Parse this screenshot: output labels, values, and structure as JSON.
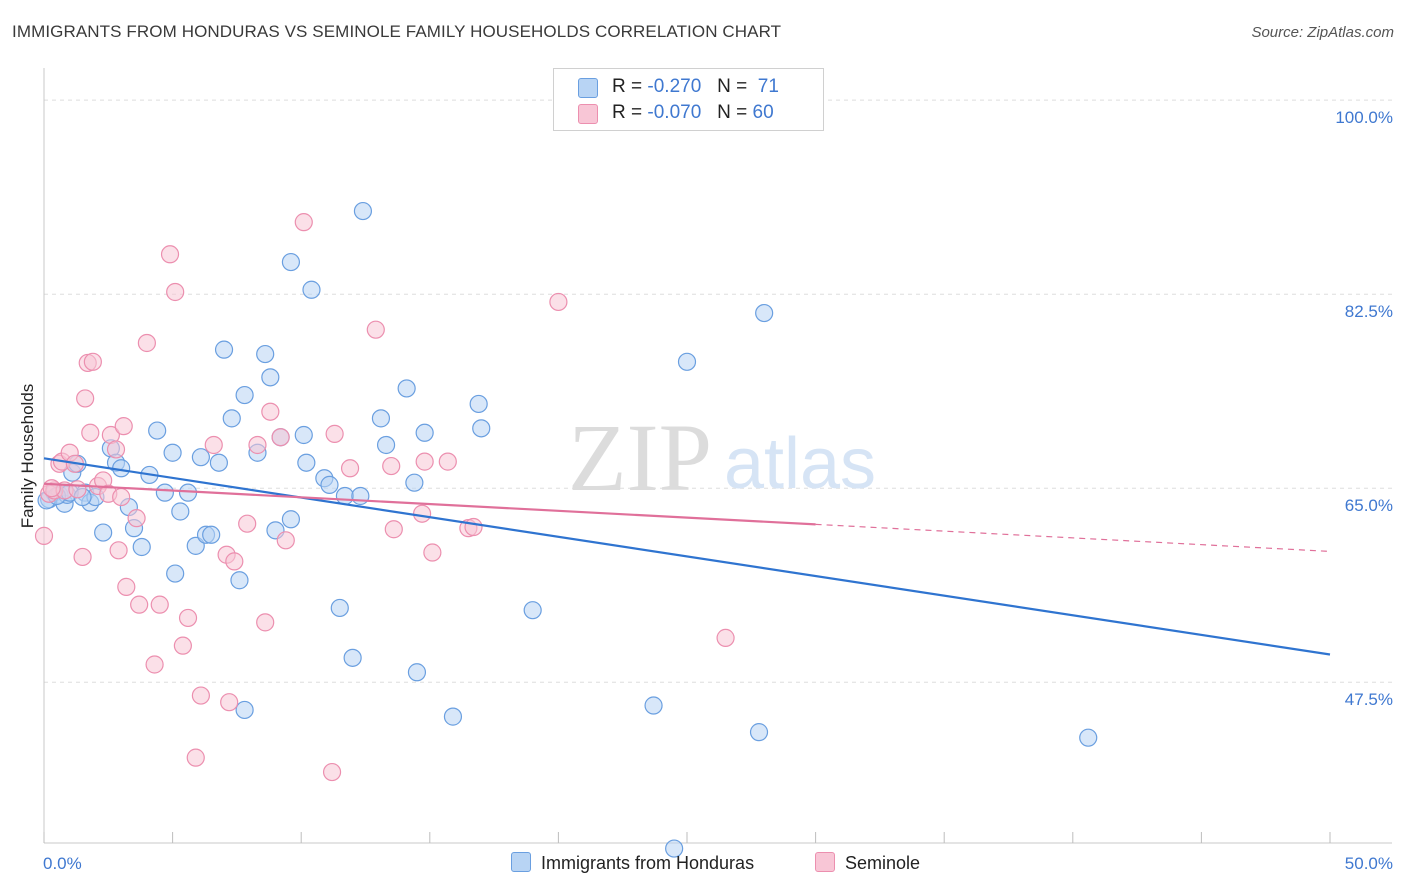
{
  "title": "IMMIGRANTS FROM HONDURAS VS SEMINOLE FAMILY HOUSEHOLDS CORRELATION CHART",
  "source": "Source: ZipAtlas.com",
  "watermark": {
    "zip": "ZIP",
    "atlas": "atlas"
  },
  "legend": {
    "series1": {
      "r_label": "R =",
      "r_value": "-0.270",
      "n_label": "N =",
      "n_value": "71"
    },
    "series2": {
      "r_label": "R =",
      "r_value": "-0.070",
      "n_label": "N =",
      "n_value": "60"
    }
  },
  "bottom_legend": {
    "series1": "Immigrants from Honduras",
    "series2": "Seminole"
  },
  "colors": {
    "blue_fill": "#b8d4f4",
    "blue_stroke": "#6a9fe0",
    "blue_line": "#2f74d0",
    "pink_fill": "#f8c6d6",
    "pink_stroke": "#ec8faf",
    "pink_line": "#e0709a",
    "tick_text": "#3f78d0",
    "grid": "#dddddd"
  },
  "chart_data": {
    "type": "scatter",
    "title": "IMMIGRANTS FROM HONDURAS VS SEMINOLE FAMILY HOUSEHOLDS CORRELATION CHART",
    "xlabel": "",
    "ylabel": "Family Households",
    "xlim": [
      0,
      50
    ],
    "ylim": [
      33,
      102
    ],
    "x_tick_labels": [
      "0.0%",
      "50.0%"
    ],
    "y_ticks": [
      47.5,
      65.0,
      82.5,
      100.0
    ],
    "y_tick_labels": [
      "47.5%",
      "65.0%",
      "82.5%",
      "100.0%"
    ],
    "series": [
      {
        "name": "Immigrants from Honduras",
        "r": -0.27,
        "n": 71,
        "trend": {
          "x0": 0,
          "y0": 67.7,
          "x1": 50,
          "y1": 50.0,
          "dash_from": null
        },
        "points": [
          [
            0.2,
            64.0
          ],
          [
            0.4,
            64.6
          ],
          [
            0.6,
            64.4
          ],
          [
            0.8,
            63.6
          ],
          [
            0.9,
            64.4
          ],
          [
            1.1,
            66.4
          ],
          [
            1.3,
            67.2
          ],
          [
            1.6,
            64.6
          ],
          [
            1.8,
            63.7
          ],
          [
            2.0,
            64.2
          ],
          [
            2.3,
            61.0
          ],
          [
            2.6,
            68.6
          ],
          [
            2.8,
            67.3
          ],
          [
            3.0,
            66.8
          ],
          [
            3.3,
            63.3
          ],
          [
            3.5,
            61.4
          ],
          [
            3.8,
            59.7
          ],
          [
            4.1,
            66.2
          ],
          [
            4.4,
            70.2
          ],
          [
            4.7,
            64.6
          ],
          [
            5.0,
            68.2
          ],
          [
            5.1,
            57.3
          ],
          [
            5.3,
            62.9
          ],
          [
            5.6,
            64.6
          ],
          [
            5.9,
            59.8
          ],
          [
            6.1,
            67.8
          ],
          [
            6.3,
            60.8
          ],
          [
            6.5,
            60.8
          ],
          [
            6.8,
            67.3
          ],
          [
            7.0,
            77.5
          ],
          [
            7.3,
            71.3
          ],
          [
            7.6,
            56.7
          ],
          [
            7.8,
            73.4
          ],
          [
            7.8,
            45.0
          ],
          [
            8.3,
            68.2
          ],
          [
            8.6,
            77.1
          ],
          [
            8.8,
            75.0
          ],
          [
            9.0,
            61.2
          ],
          [
            9.2,
            69.6
          ],
          [
            9.6,
            62.2
          ],
          [
            9.6,
            85.4
          ],
          [
            10.1,
            69.8
          ],
          [
            10.2,
            67.3
          ],
          [
            10.4,
            82.9
          ],
          [
            10.9,
            65.9
          ],
          [
            11.1,
            65.3
          ],
          [
            11.5,
            54.2
          ],
          [
            11.7,
            64.3
          ],
          [
            12.0,
            49.7
          ],
          [
            12.3,
            64.3
          ],
          [
            12.4,
            90.0
          ],
          [
            13.1,
            71.3
          ],
          [
            13.3,
            68.9
          ],
          [
            14.1,
            74.0
          ],
          [
            14.4,
            65.5
          ],
          [
            14.5,
            48.4
          ],
          [
            14.8,
            70.0
          ],
          [
            15.9,
            44.4
          ],
          [
            16.9,
            72.6
          ],
          [
            17.0,
            70.4
          ],
          [
            19.0,
            54.0
          ],
          [
            23.7,
            45.4
          ],
          [
            24.5,
            32.5
          ],
          [
            25.0,
            76.4
          ],
          [
            27.8,
            43.0
          ],
          [
            28.0,
            80.8
          ],
          [
            40.6,
            42.5
          ],
          [
            0.1,
            63.9
          ],
          [
            0.5,
            64.3
          ],
          [
            1.0,
            64.6
          ],
          [
            1.5,
            64.2
          ]
        ]
      },
      {
        "name": "Seminole",
        "r": -0.07,
        "n": 60,
        "trend": {
          "x0": 0,
          "y0": 65.4,
          "x1": 50,
          "y1": 59.3,
          "dash_from": 30
        },
        "points": [
          [
            0.0,
            60.7
          ],
          [
            0.2,
            64.5
          ],
          [
            0.4,
            64.8
          ],
          [
            0.6,
            67.2
          ],
          [
            0.7,
            67.4
          ],
          [
            0.8,
            64.8
          ],
          [
            1.0,
            68.2
          ],
          [
            1.2,
            67.2
          ],
          [
            1.5,
            58.8
          ],
          [
            1.6,
            73.1
          ],
          [
            1.7,
            76.3
          ],
          [
            1.8,
            70.0
          ],
          [
            1.9,
            76.4
          ],
          [
            2.1,
            65.2
          ],
          [
            2.3,
            65.7
          ],
          [
            2.5,
            64.5
          ],
          [
            2.6,
            69.8
          ],
          [
            2.8,
            68.5
          ],
          [
            2.9,
            59.4
          ],
          [
            3.0,
            64.2
          ],
          [
            3.1,
            70.6
          ],
          [
            3.2,
            56.1
          ],
          [
            3.6,
            62.3
          ],
          [
            3.7,
            54.5
          ],
          [
            4.0,
            78.1
          ],
          [
            4.3,
            49.1
          ],
          [
            4.5,
            54.5
          ],
          [
            4.9,
            86.1
          ],
          [
            5.1,
            82.7
          ],
          [
            5.4,
            50.8
          ],
          [
            5.6,
            53.3
          ],
          [
            5.9,
            40.7
          ],
          [
            6.1,
            46.3
          ],
          [
            6.6,
            68.9
          ],
          [
            7.1,
            59.0
          ],
          [
            7.2,
            45.7
          ],
          [
            7.4,
            58.4
          ],
          [
            7.9,
            61.8
          ],
          [
            8.3,
            68.9
          ],
          [
            8.6,
            52.9
          ],
          [
            8.8,
            71.9
          ],
          [
            9.2,
            69.6
          ],
          [
            9.4,
            60.3
          ],
          [
            10.1,
            89.0
          ],
          [
            11.2,
            39.4
          ],
          [
            11.3,
            69.9
          ],
          [
            11.9,
            66.8
          ],
          [
            12.9,
            79.3
          ],
          [
            13.5,
            67.0
          ],
          [
            13.6,
            61.3
          ],
          [
            14.7,
            62.7
          ],
          [
            14.8,
            67.4
          ],
          [
            15.1,
            59.2
          ],
          [
            15.7,
            67.4
          ],
          [
            16.5,
            61.4
          ],
          [
            16.7,
            61.5
          ],
          [
            20.0,
            81.8
          ],
          [
            26.5,
            51.5
          ],
          [
            0.3,
            65.0
          ],
          [
            1.3,
            64.9
          ]
        ]
      }
    ]
  }
}
